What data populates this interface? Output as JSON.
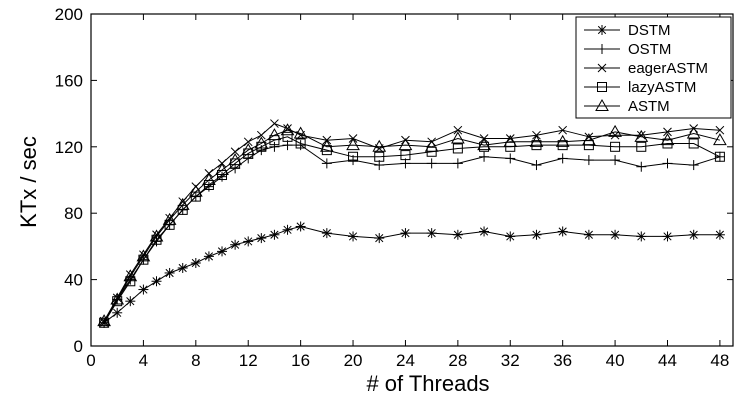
{
  "chart_data": {
    "type": "line",
    "title": "",
    "xlabel": "# of Threads",
    "ylabel": "KTx / sec",
    "xlim": [
      0,
      49
    ],
    "ylim": [
      0,
      200
    ],
    "xticks": [
      0,
      4,
      8,
      12,
      16,
      20,
      24,
      28,
      32,
      36,
      40,
      44,
      48
    ],
    "yticks": [
      0,
      40,
      80,
      120,
      160,
      200
    ],
    "grid": false,
    "legend_position": "top-right",
    "colors": {
      "line": "#000000",
      "background": "#ffffff"
    },
    "series": [
      {
        "name": "DSTM",
        "marker": "asterisk",
        "x": [
          1,
          2,
          3,
          4,
          5,
          6,
          7,
          8,
          9,
          10,
          11,
          12,
          13,
          14,
          15,
          16,
          18,
          20,
          22,
          24,
          26,
          28,
          30,
          32,
          34,
          36,
          38,
          40,
          42,
          44,
          46,
          48
        ],
        "y": [
          14,
          20,
          27,
          34,
          39,
          44,
          47,
          50,
          54,
          57,
          61,
          63,
          65,
          67,
          70,
          72,
          68,
          66,
          65,
          68,
          68,
          67,
          69,
          66,
          67,
          69,
          67,
          67,
          66,
          66,
          67,
          67
        ]
      },
      {
        "name": "OSTM",
        "marker": "plus",
        "x": [
          1,
          2,
          3,
          4,
          5,
          6,
          7,
          8,
          9,
          10,
          11,
          12,
          13,
          14,
          15,
          16,
          18,
          20,
          22,
          24,
          26,
          28,
          30,
          32,
          34,
          36,
          38,
          40,
          42,
          44,
          46,
          48
        ],
        "y": [
          14,
          28,
          40,
          52,
          63,
          73,
          82,
          90,
          96,
          102,
          107,
          113,
          118,
          120,
          121,
          121,
          110,
          112,
          109,
          110,
          110,
          110,
          114,
          113,
          109,
          113,
          112,
          112,
          108,
          110,
          109,
          114
        ]
      },
      {
        "name": "eagerASTM",
        "marker": "x",
        "x": [
          1,
          2,
          3,
          4,
          5,
          6,
          7,
          8,
          9,
          10,
          11,
          12,
          13,
          14,
          15,
          16,
          18,
          20,
          22,
          24,
          26,
          28,
          30,
          32,
          34,
          36,
          38,
          40,
          42,
          44,
          46,
          48
        ],
        "y": [
          15,
          29,
          43,
          55,
          67,
          77,
          87,
          96,
          104,
          110,
          117,
          123,
          127,
          134,
          131,
          127,
          124,
          125,
          119,
          124,
          123,
          130,
          125,
          125,
          127,
          130,
          126,
          127,
          127,
          129,
          131,
          130
        ]
      },
      {
        "name": "lazyASTM",
        "marker": "square",
        "x": [
          1,
          2,
          3,
          4,
          5,
          6,
          7,
          8,
          9,
          10,
          11,
          12,
          13,
          14,
          15,
          16,
          18,
          20,
          22,
          24,
          26,
          28,
          30,
          32,
          34,
          36,
          38,
          40,
          42,
          44,
          46,
          48
        ],
        "y": [
          14,
          27,
          39,
          52,
          64,
          73,
          82,
          90,
          97,
          103,
          110,
          116,
          120,
          124,
          126,
          122,
          118,
          114,
          114,
          115,
          117,
          119,
          120,
          120,
          121,
          121,
          121,
          120,
          120,
          122,
          122,
          114
        ]
      },
      {
        "name": "ASTM",
        "marker": "triangle",
        "x": [
          1,
          2,
          3,
          4,
          5,
          6,
          7,
          8,
          9,
          10,
          11,
          12,
          13,
          14,
          15,
          16,
          18,
          20,
          22,
          24,
          26,
          28,
          30,
          32,
          34,
          36,
          38,
          40,
          42,
          44,
          46,
          48
        ],
        "y": [
          15,
          28,
          42,
          54,
          66,
          76,
          85,
          93,
          100,
          106,
          112,
          118,
          122,
          127,
          130,
          128,
          120,
          121,
          120,
          121,
          120,
          125,
          121,
          123,
          123,
          123,
          124,
          129,
          126,
          124,
          128,
          124
        ]
      }
    ]
  }
}
